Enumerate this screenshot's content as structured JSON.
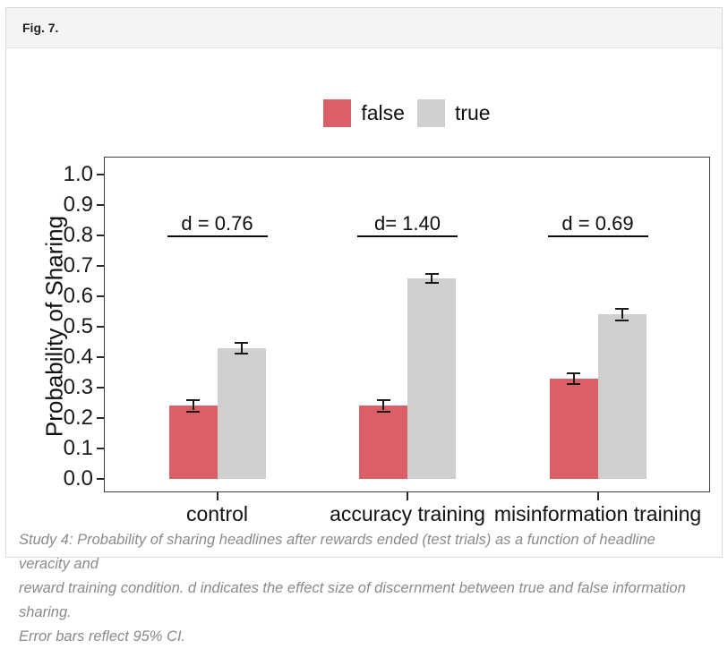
{
  "figure": {
    "label": "Fig. 7."
  },
  "legend": {
    "items": [
      {
        "label": "false",
        "color": "#DB5F66"
      },
      {
        "label": "true",
        "color": "#CFCFCF"
      }
    ]
  },
  "caption": {
    "lines": [
      "Study 4: Probability of sharing headlines after rewards ended (test trials) as a function of headline veracity and",
      "reward training condition. d indicates the effect size of discernment between true and false information sharing.",
      "Error bars reflect 95% CI."
    ]
  },
  "chart_data": {
    "type": "bar",
    "title": "",
    "xlabel": "",
    "ylabel": "Probability of Sharing",
    "categories": [
      "control",
      "accuracy training",
      "misinformation training"
    ],
    "series": [
      {
        "name": "false",
        "color": "#DB5F66",
        "values": [
          0.24,
          0.24,
          0.33
        ],
        "errors": [
          0.015,
          0.015,
          0.015
        ]
      },
      {
        "name": "true",
        "color": "#CFCFCF",
        "values": [
          0.43,
          0.66,
          0.54
        ],
        "errors": [
          0.015,
          0.012,
          0.015
        ]
      }
    ],
    "annotations": [
      {
        "category": "control",
        "label": "d = 0.76"
      },
      {
        "category": "accuracy training",
        "label": "d= 1.40"
      },
      {
        "category": "misinformation training",
        "label": "d = 0.69"
      }
    ],
    "ylim": [
      0.0,
      1.0
    ],
    "y_ticks": [
      0.0,
      0.1,
      0.2,
      0.3,
      0.4,
      0.5,
      0.6,
      0.7,
      0.8,
      0.9,
      1.0
    ],
    "grid": false,
    "legend_position": "top",
    "error_bars": "95% CI"
  }
}
